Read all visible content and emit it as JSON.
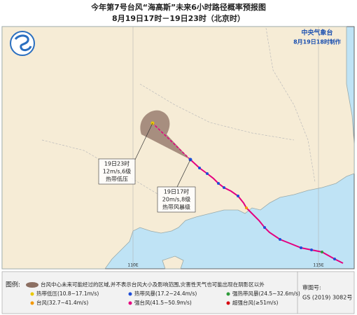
{
  "header": {
    "title": "今年第7号台风“海高斯”未来6小时路径概率预报图",
    "subtitle": "8月19日17时－19日23时（北京时）"
  },
  "agency": {
    "name": "中央气象台",
    "issued": "8月19日18时制作"
  },
  "annotations": [
    {
      "lines": [
        "19日23时",
        "12m/s,6级",
        "热带低压"
      ]
    },
    {
      "lines": [
        "19日17时",
        "20m/s,8级",
        "热带风暴级"
      ]
    }
  ],
  "longitude_labels": [
    "110E",
    "115E"
  ],
  "legend": {
    "title": "图例:",
    "cone": "台风中心未来可能经过的区域,并不表示台风大小及影响范围,灾害性天气也可能出现在阴影区以外",
    "items": [
      {
        "label": "热带低压(10.8~17.1m/s)",
        "color": "#e8c800"
      },
      {
        "label": "热带风暴(17.2~24.4m/s)",
        "color": "#1f4ed8"
      },
      {
        "label": "强热带风暴(24.5~32.6m/s)",
        "color": "#2e9b3a"
      },
      {
        "label": "台风(32.7~41.4m/s)",
        "color": "#f39800"
      },
      {
        "label": "强台风(41.5~50.9m/s)",
        "color": "#e4007f"
      },
      {
        "label": "超强台风(≥51m/s)",
        "color": "#d7000f"
      }
    ]
  },
  "approval": {
    "label": "审图号:",
    "number": "GS (2019) 3082号"
  }
}
